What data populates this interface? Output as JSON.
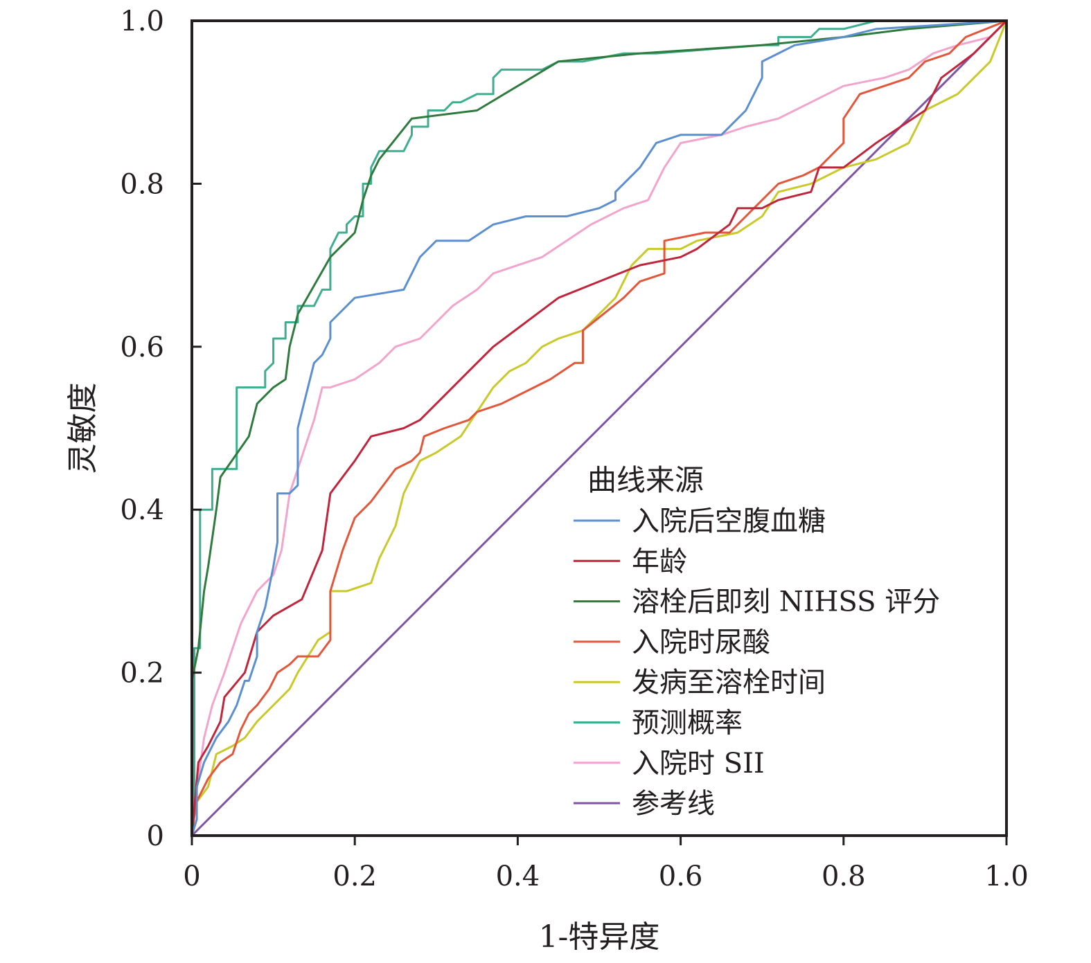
{
  "chart_data": {
    "type": "line",
    "title": "",
    "xlabel": "1-特异度",
    "ylabel": "灵敏度",
    "xlim": [
      0,
      1
    ],
    "ylim": [
      0,
      1
    ],
    "x_ticks": [
      "0",
      "0.2",
      "0.4",
      "0.6",
      "0.8",
      "1.0"
    ],
    "y_ticks": [
      "0",
      "0.2",
      "0.4",
      "0.6",
      "0.8",
      "1.0"
    ],
    "grid": false,
    "legend": {
      "title": "曲线来源",
      "position": "bottom-right"
    },
    "series": [
      {
        "name": "入院后空腹血糖",
        "color": "#5b8fcf",
        "x": [
          0,
          0.006,
          0.006,
          0.015,
          0.03,
          0.045,
          0.055,
          0.065,
          0.07,
          0.08,
          0.08,
          0.09,
          0.1,
          0.105,
          0.105,
          0.12,
          0.13,
          0.13,
          0.14,
          0.15,
          0.16,
          0.17,
          0.17,
          0.2,
          0.26,
          0.28,
          0.3,
          0.34,
          0.37,
          0.41,
          0.46,
          0.5,
          0.52,
          0.52,
          0.55,
          0.57,
          0.6,
          0.65,
          0.68,
          0.7,
          0.7,
          0.72,
          0.74,
          0.8,
          0.84,
          1.0
        ],
        "y": [
          0,
          0.02,
          0.06,
          0.09,
          0.12,
          0.14,
          0.16,
          0.19,
          0.19,
          0.22,
          0.25,
          0.28,
          0.33,
          0.36,
          0.42,
          0.42,
          0.43,
          0.5,
          0.54,
          0.58,
          0.59,
          0.61,
          0.63,
          0.66,
          0.67,
          0.71,
          0.73,
          0.73,
          0.75,
          0.76,
          0.76,
          0.77,
          0.78,
          0.79,
          0.82,
          0.85,
          0.86,
          0.86,
          0.89,
          0.93,
          0.95,
          0.96,
          0.97,
          0.98,
          0.99,
          1.0
        ]
      },
      {
        "name": "年龄",
        "color": "#c0253c",
        "x": [
          0,
          0.008,
          0.02,
          0.035,
          0.04,
          0.065,
          0.08,
          0.09,
          0.1,
          0.135,
          0.16,
          0.17,
          0.2,
          0.22,
          0.26,
          0.28,
          0.3,
          0.34,
          0.37,
          0.41,
          0.45,
          0.5,
          0.55,
          0.6,
          0.62,
          0.66,
          0.67,
          0.7,
          0.72,
          0.76,
          0.77,
          0.8,
          0.84,
          0.9,
          0.92,
          0.96,
          1.0
        ],
        "y": [
          0,
          0.09,
          0.11,
          0.14,
          0.17,
          0.2,
          0.25,
          0.26,
          0.27,
          0.29,
          0.35,
          0.42,
          0.46,
          0.49,
          0.5,
          0.51,
          0.53,
          0.57,
          0.6,
          0.63,
          0.66,
          0.68,
          0.7,
          0.71,
          0.72,
          0.75,
          0.77,
          0.77,
          0.78,
          0.79,
          0.82,
          0.82,
          0.85,
          0.89,
          0.93,
          0.96,
          1.0
        ]
      },
      {
        "name": "溶栓后即刻 NIHSS 评分",
        "color": "#2f7a3e",
        "x": [
          0,
          0.008,
          0.015,
          0.02,
          0.03,
          0.035,
          0.07,
          0.08,
          0.1,
          0.115,
          0.12,
          0.13,
          0.17,
          0.2,
          0.21,
          0.22,
          0.23,
          0.27,
          0.35,
          0.45,
          0.55,
          0.7,
          0.8,
          0.88,
          1.0
        ],
        "y": [
          0.19,
          0.23,
          0.3,
          0.33,
          0.4,
          0.44,
          0.49,
          0.53,
          0.55,
          0.56,
          0.6,
          0.64,
          0.71,
          0.74,
          0.78,
          0.81,
          0.83,
          0.88,
          0.89,
          0.95,
          0.96,
          0.97,
          0.98,
          0.99,
          1.0
        ]
      },
      {
        "name": "入院时尿酸",
        "color": "#e4563a",
        "x": [
          0,
          0.005,
          0.02,
          0.035,
          0.05,
          0.06,
          0.07,
          0.08,
          0.095,
          0.105,
          0.12,
          0.13,
          0.155,
          0.17,
          0.17,
          0.185,
          0.2,
          0.22,
          0.235,
          0.25,
          0.27,
          0.28,
          0.285,
          0.31,
          0.34,
          0.35,
          0.38,
          0.4,
          0.42,
          0.44,
          0.47,
          0.48,
          0.48,
          0.53,
          0.55,
          0.58,
          0.58,
          0.63,
          0.66,
          0.7,
          0.72,
          0.75,
          0.77,
          0.79,
          0.8,
          0.8,
          0.82,
          0.85,
          0.88,
          0.9,
          0.93,
          0.95,
          1.0
        ],
        "y": [
          0,
          0.04,
          0.07,
          0.09,
          0.1,
          0.13,
          0.15,
          0.16,
          0.18,
          0.2,
          0.21,
          0.22,
          0.22,
          0.24,
          0.3,
          0.35,
          0.39,
          0.41,
          0.43,
          0.45,
          0.46,
          0.47,
          0.49,
          0.5,
          0.51,
          0.52,
          0.53,
          0.54,
          0.55,
          0.56,
          0.58,
          0.58,
          0.62,
          0.66,
          0.68,
          0.69,
          0.73,
          0.74,
          0.74,
          0.78,
          0.8,
          0.81,
          0.82,
          0.84,
          0.85,
          0.88,
          0.91,
          0.92,
          0.93,
          0.95,
          0.96,
          0.98,
          1.0
        ]
      },
      {
        "name": "发病至溶栓时间",
        "color": "#c9c92a",
        "x": [
          0,
          0.005,
          0.02,
          0.03,
          0.05,
          0.065,
          0.08,
          0.1,
          0.12,
          0.13,
          0.155,
          0.17,
          0.17,
          0.19,
          0.22,
          0.23,
          0.25,
          0.26,
          0.28,
          0.3,
          0.33,
          0.35,
          0.37,
          0.39,
          0.41,
          0.43,
          0.45,
          0.48,
          0.5,
          0.52,
          0.54,
          0.56,
          0.6,
          0.62,
          0.67,
          0.7,
          0.72,
          0.76,
          0.8,
          0.84,
          0.88,
          0.9,
          0.94,
          0.98,
          1.0
        ],
        "y": [
          0,
          0.04,
          0.06,
          0.1,
          0.11,
          0.12,
          0.14,
          0.16,
          0.18,
          0.2,
          0.24,
          0.25,
          0.3,
          0.3,
          0.31,
          0.34,
          0.38,
          0.42,
          0.46,
          0.47,
          0.49,
          0.52,
          0.55,
          0.57,
          0.58,
          0.6,
          0.61,
          0.62,
          0.64,
          0.66,
          0.7,
          0.72,
          0.72,
          0.73,
          0.74,
          0.76,
          0.79,
          0.8,
          0.82,
          0.83,
          0.85,
          0.89,
          0.91,
          0.95,
          1.0
        ]
      },
      {
        "name": "预测概率",
        "color": "#3fae8f",
        "x": [
          0,
          0.003,
          0.003,
          0.01,
          0.01,
          0.025,
          0.025,
          0.055,
          0.055,
          0.09,
          0.09,
          0.1,
          0.1,
          0.115,
          0.115,
          0.13,
          0.13,
          0.15,
          0.16,
          0.17,
          0.17,
          0.18,
          0.19,
          0.19,
          0.2,
          0.21,
          0.21,
          0.22,
          0.22,
          0.23,
          0.24,
          0.26,
          0.27,
          0.27,
          0.29,
          0.29,
          0.31,
          0.32,
          0.33,
          0.35,
          0.37,
          0.37,
          0.38,
          0.39,
          0.41,
          0.43,
          0.45,
          0.48,
          0.53,
          0.57,
          0.7,
          0.72,
          0.72,
          0.76,
          0.77,
          0.8,
          0.84,
          1.0
        ],
        "y": [
          0,
          0.03,
          0.23,
          0.23,
          0.4,
          0.4,
          0.45,
          0.45,
          0.55,
          0.55,
          0.57,
          0.58,
          0.61,
          0.61,
          0.63,
          0.63,
          0.65,
          0.65,
          0.67,
          0.67,
          0.72,
          0.74,
          0.74,
          0.75,
          0.76,
          0.76,
          0.8,
          0.8,
          0.82,
          0.84,
          0.84,
          0.84,
          0.86,
          0.87,
          0.87,
          0.89,
          0.89,
          0.9,
          0.9,
          0.91,
          0.91,
          0.93,
          0.94,
          0.94,
          0.94,
          0.94,
          0.95,
          0.95,
          0.96,
          0.96,
          0.97,
          0.97,
          0.98,
          0.98,
          0.99,
          0.99,
          1.0,
          1.0
        ]
      },
      {
        "name": "入院时 SII",
        "color": "#f1a5cd",
        "x": [
          0,
          0.005,
          0.015,
          0.025,
          0.04,
          0.05,
          0.06,
          0.07,
          0.08,
          0.09,
          0.1,
          0.11,
          0.12,
          0.13,
          0.14,
          0.15,
          0.16,
          0.17,
          0.2,
          0.23,
          0.25,
          0.28,
          0.3,
          0.32,
          0.35,
          0.37,
          0.4,
          0.43,
          0.46,
          0.49,
          0.51,
          0.53,
          0.56,
          0.58,
          0.6,
          0.65,
          0.68,
          0.72,
          0.76,
          0.8,
          0.85,
          0.88,
          0.91,
          0.94,
          0.98,
          1.0
        ],
        "y": [
          0,
          0.05,
          0.12,
          0.16,
          0.2,
          0.23,
          0.26,
          0.28,
          0.3,
          0.31,
          0.32,
          0.35,
          0.42,
          0.45,
          0.48,
          0.51,
          0.55,
          0.55,
          0.56,
          0.58,
          0.6,
          0.61,
          0.63,
          0.65,
          0.67,
          0.69,
          0.7,
          0.71,
          0.73,
          0.75,
          0.76,
          0.77,
          0.78,
          0.82,
          0.85,
          0.86,
          0.87,
          0.88,
          0.9,
          0.92,
          0.93,
          0.94,
          0.96,
          0.97,
          0.98,
          1.0
        ]
      },
      {
        "name": "参考线",
        "color": "#7e55a4",
        "x": [
          0,
          1
        ],
        "y": [
          0,
          1
        ]
      }
    ]
  }
}
